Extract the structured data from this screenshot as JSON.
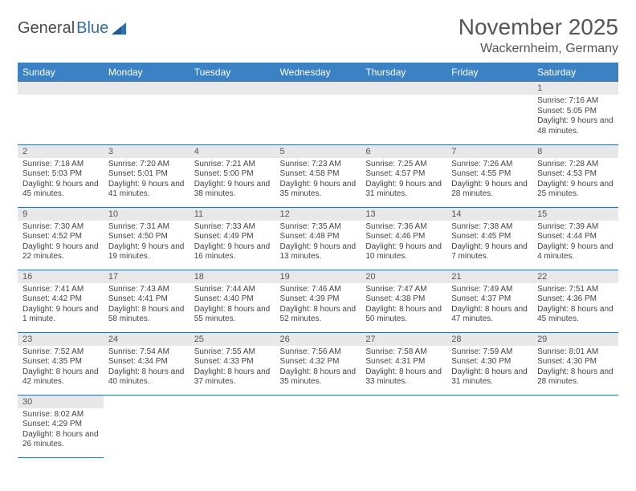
{
  "logo": {
    "text_a": "General",
    "text_b": "Blue"
  },
  "title": "November 2025",
  "location": "Wackernheim, Germany",
  "colors": {
    "header_bg": "#3b82c4",
    "header_fg": "#ffffff",
    "rule": "#2e6fb5",
    "daynum_bg": "#e8e8e8",
    "text": "#444444"
  },
  "day_headers": [
    "Sunday",
    "Monday",
    "Tuesday",
    "Wednesday",
    "Thursday",
    "Friday",
    "Saturday"
  ],
  "weeks": [
    [
      null,
      null,
      null,
      null,
      null,
      null,
      {
        "n": "1",
        "sr": "Sunrise: 7:16 AM",
        "ss": "Sunset: 5:05 PM",
        "dl": "Daylight: 9 hours and 48 minutes."
      }
    ],
    [
      {
        "n": "2",
        "sr": "Sunrise: 7:18 AM",
        "ss": "Sunset: 5:03 PM",
        "dl": "Daylight: 9 hours and 45 minutes."
      },
      {
        "n": "3",
        "sr": "Sunrise: 7:20 AM",
        "ss": "Sunset: 5:01 PM",
        "dl": "Daylight: 9 hours and 41 minutes."
      },
      {
        "n": "4",
        "sr": "Sunrise: 7:21 AM",
        "ss": "Sunset: 5:00 PM",
        "dl": "Daylight: 9 hours and 38 minutes."
      },
      {
        "n": "5",
        "sr": "Sunrise: 7:23 AM",
        "ss": "Sunset: 4:58 PM",
        "dl": "Daylight: 9 hours and 35 minutes."
      },
      {
        "n": "6",
        "sr": "Sunrise: 7:25 AM",
        "ss": "Sunset: 4:57 PM",
        "dl": "Daylight: 9 hours and 31 minutes."
      },
      {
        "n": "7",
        "sr": "Sunrise: 7:26 AM",
        "ss": "Sunset: 4:55 PM",
        "dl": "Daylight: 9 hours and 28 minutes."
      },
      {
        "n": "8",
        "sr": "Sunrise: 7:28 AM",
        "ss": "Sunset: 4:53 PM",
        "dl": "Daylight: 9 hours and 25 minutes."
      }
    ],
    [
      {
        "n": "9",
        "sr": "Sunrise: 7:30 AM",
        "ss": "Sunset: 4:52 PM",
        "dl": "Daylight: 9 hours and 22 minutes."
      },
      {
        "n": "10",
        "sr": "Sunrise: 7:31 AM",
        "ss": "Sunset: 4:50 PM",
        "dl": "Daylight: 9 hours and 19 minutes."
      },
      {
        "n": "11",
        "sr": "Sunrise: 7:33 AM",
        "ss": "Sunset: 4:49 PM",
        "dl": "Daylight: 9 hours and 16 minutes."
      },
      {
        "n": "12",
        "sr": "Sunrise: 7:35 AM",
        "ss": "Sunset: 4:48 PM",
        "dl": "Daylight: 9 hours and 13 minutes."
      },
      {
        "n": "13",
        "sr": "Sunrise: 7:36 AM",
        "ss": "Sunset: 4:46 PM",
        "dl": "Daylight: 9 hours and 10 minutes."
      },
      {
        "n": "14",
        "sr": "Sunrise: 7:38 AM",
        "ss": "Sunset: 4:45 PM",
        "dl": "Daylight: 9 hours and 7 minutes."
      },
      {
        "n": "15",
        "sr": "Sunrise: 7:39 AM",
        "ss": "Sunset: 4:44 PM",
        "dl": "Daylight: 9 hours and 4 minutes."
      }
    ],
    [
      {
        "n": "16",
        "sr": "Sunrise: 7:41 AM",
        "ss": "Sunset: 4:42 PM",
        "dl": "Daylight: 9 hours and 1 minute."
      },
      {
        "n": "17",
        "sr": "Sunrise: 7:43 AM",
        "ss": "Sunset: 4:41 PM",
        "dl": "Daylight: 8 hours and 58 minutes."
      },
      {
        "n": "18",
        "sr": "Sunrise: 7:44 AM",
        "ss": "Sunset: 4:40 PM",
        "dl": "Daylight: 8 hours and 55 minutes."
      },
      {
        "n": "19",
        "sr": "Sunrise: 7:46 AM",
        "ss": "Sunset: 4:39 PM",
        "dl": "Daylight: 8 hours and 52 minutes."
      },
      {
        "n": "20",
        "sr": "Sunrise: 7:47 AM",
        "ss": "Sunset: 4:38 PM",
        "dl": "Daylight: 8 hours and 50 minutes."
      },
      {
        "n": "21",
        "sr": "Sunrise: 7:49 AM",
        "ss": "Sunset: 4:37 PM",
        "dl": "Daylight: 8 hours and 47 minutes."
      },
      {
        "n": "22",
        "sr": "Sunrise: 7:51 AM",
        "ss": "Sunset: 4:36 PM",
        "dl": "Daylight: 8 hours and 45 minutes."
      }
    ],
    [
      {
        "n": "23",
        "sr": "Sunrise: 7:52 AM",
        "ss": "Sunset: 4:35 PM",
        "dl": "Daylight: 8 hours and 42 minutes."
      },
      {
        "n": "24",
        "sr": "Sunrise: 7:54 AM",
        "ss": "Sunset: 4:34 PM",
        "dl": "Daylight: 8 hours and 40 minutes."
      },
      {
        "n": "25",
        "sr": "Sunrise: 7:55 AM",
        "ss": "Sunset: 4:33 PM",
        "dl": "Daylight: 8 hours and 37 minutes."
      },
      {
        "n": "26",
        "sr": "Sunrise: 7:56 AM",
        "ss": "Sunset: 4:32 PM",
        "dl": "Daylight: 8 hours and 35 minutes."
      },
      {
        "n": "27",
        "sr": "Sunrise: 7:58 AM",
        "ss": "Sunset: 4:31 PM",
        "dl": "Daylight: 8 hours and 33 minutes."
      },
      {
        "n": "28",
        "sr": "Sunrise: 7:59 AM",
        "ss": "Sunset: 4:30 PM",
        "dl": "Daylight: 8 hours and 31 minutes."
      },
      {
        "n": "29",
        "sr": "Sunrise: 8:01 AM",
        "ss": "Sunset: 4:30 PM",
        "dl": "Daylight: 8 hours and 28 minutes."
      }
    ],
    [
      {
        "n": "30",
        "sr": "Sunrise: 8:02 AM",
        "ss": "Sunset: 4:29 PM",
        "dl": "Daylight: 8 hours and 26 minutes."
      },
      null,
      null,
      null,
      null,
      null,
      null
    ]
  ]
}
